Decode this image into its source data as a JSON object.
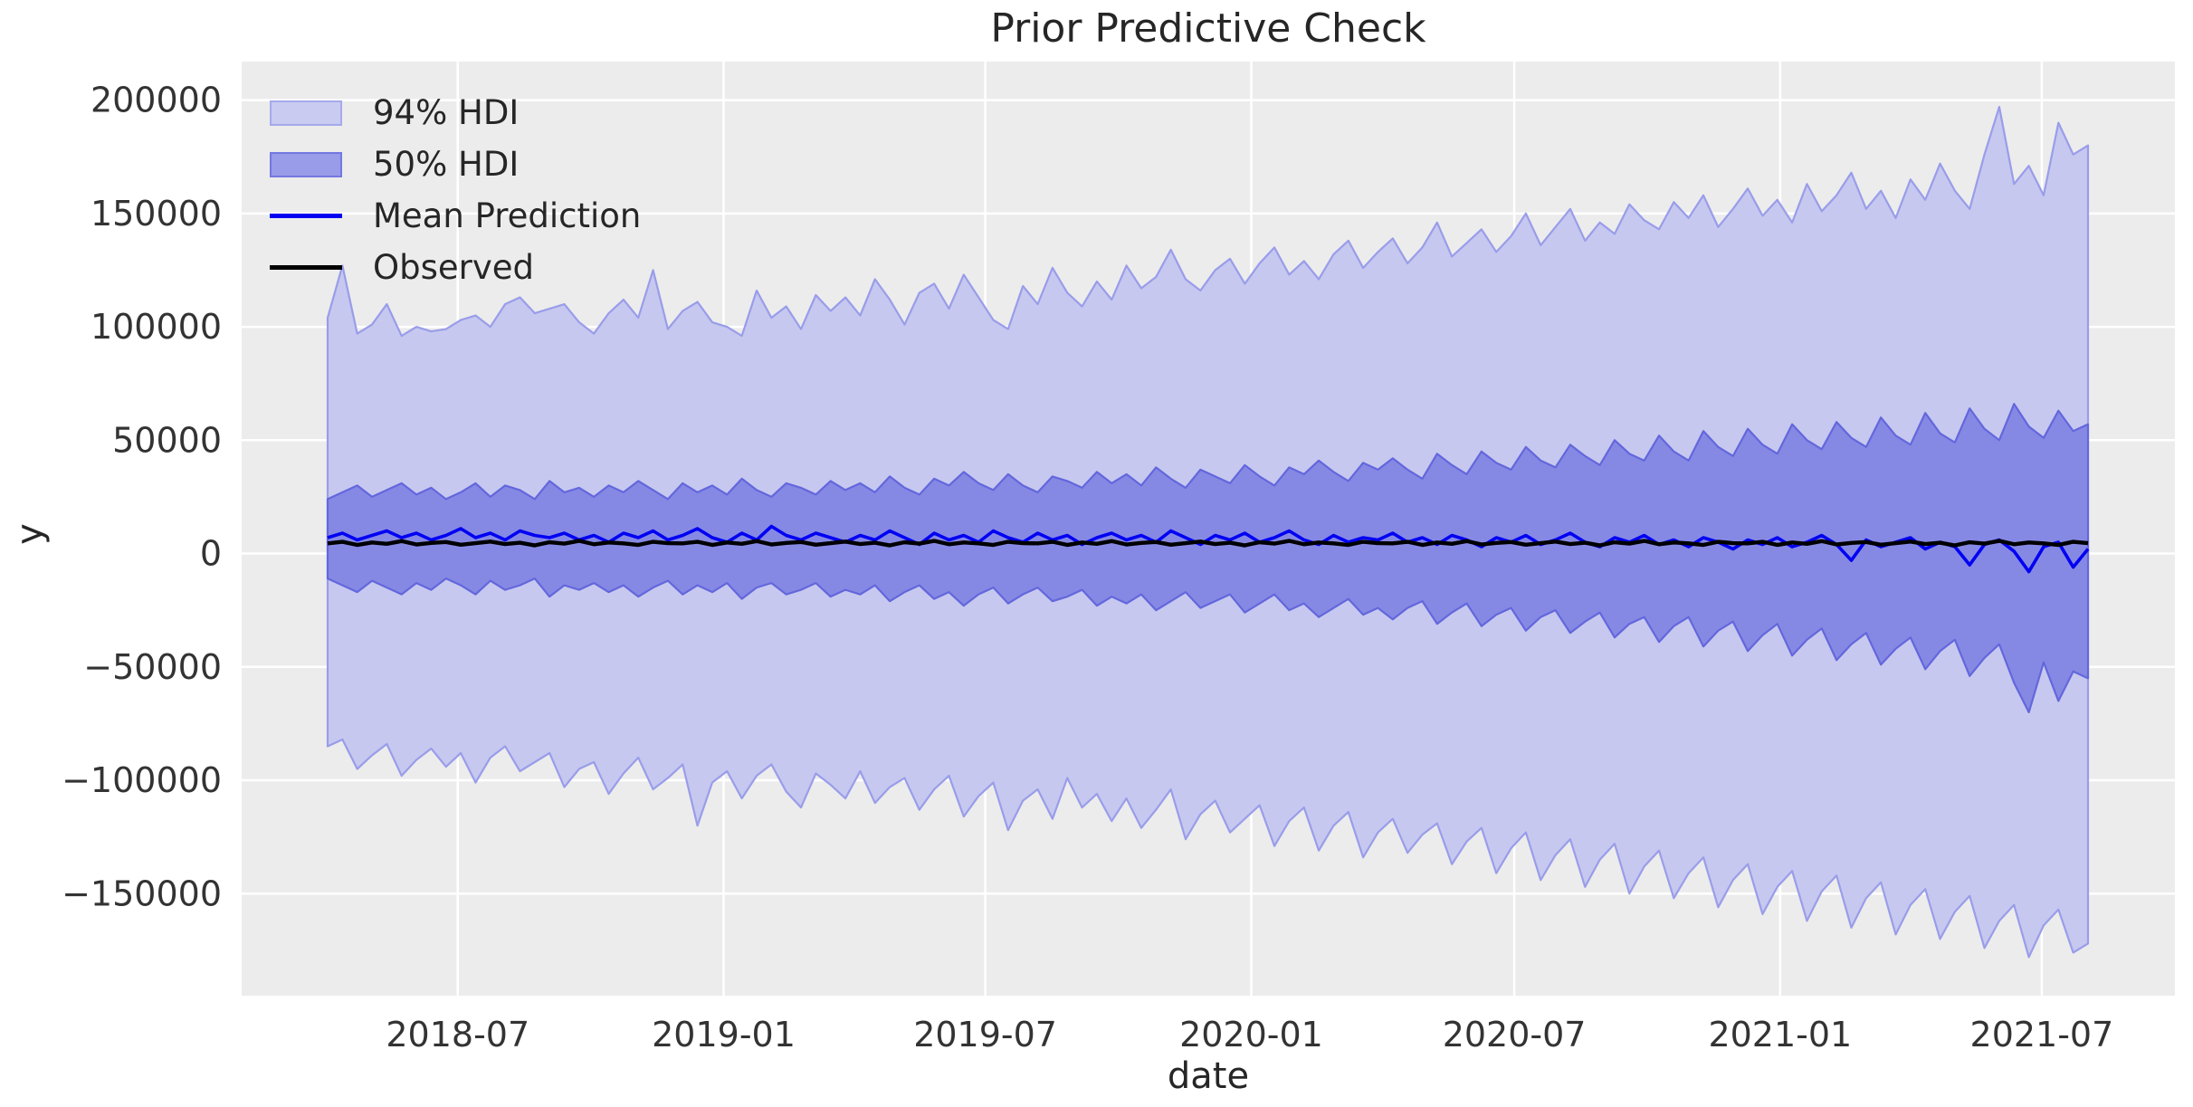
{
  "chart_data": {
    "type": "area",
    "title": "Prior Predictive Check",
    "xlabel": "date",
    "ylabel": "y",
    "grid": true,
    "background_axes": "#ececec",
    "grid_color": "#ffffff",
    "legend_position": "upper left",
    "legend": {
      "items": [
        {
          "label": "94% HDI",
          "swatch": "patch",
          "fill": "#c9cbf0",
          "edge": "#a6aaec"
        },
        {
          "label": "50% HDI",
          "swatch": "patch",
          "fill": "#989ce9",
          "edge": "#7478e0"
        },
        {
          "label": "Mean Prediction",
          "swatch": "line",
          "color": "#0101f2"
        },
        {
          "label": "Observed",
          "swatch": "line",
          "color": "#000000"
        }
      ]
    },
    "x_axis": {
      "label": "date",
      "weeks_total": 174,
      "start": "2018-04",
      "end": "2021-08",
      "ticks": [
        {
          "label": "2018-07",
          "week": 12.86
        },
        {
          "label": "2019-01",
          "week": 39.14
        },
        {
          "label": "2019-07",
          "week": 65.0
        },
        {
          "label": "2020-01",
          "week": 91.29
        },
        {
          "label": "2020-07",
          "week": 117.29
        },
        {
          "label": "2021-01",
          "week": 143.57
        },
        {
          "label": "2021-07",
          "week": 169.43
        }
      ]
    },
    "y_axis": {
      "label": "y",
      "lim": [
        -195000,
        217000
      ],
      "ticks": [
        {
          "label": "200000",
          "value": 200000
        },
        {
          "label": "150000",
          "value": 150000
        },
        {
          "label": "100000",
          "value": 100000
        },
        {
          "label": "50000",
          "value": 50000
        },
        {
          "label": "0",
          "value": 0
        },
        {
          "label": "−50000",
          "value": -50000
        },
        {
          "label": "−100000",
          "value": -100000
        },
        {
          "label": "−150000",
          "value": -150000
        }
      ]
    },
    "series": {
      "hdi94": {
        "name": "94% HDI",
        "fill": "#c6c8ef",
        "edge": "#999de9",
        "upper": [
          104000,
          127000,
          97000,
          101000,
          110000,
          96000,
          100000,
          98000,
          99000,
          103000,
          105000,
          100000,
          110000,
          113000,
          106000,
          108000,
          110000,
          102000,
          97000,
          106000,
          112000,
          104000,
          125000,
          99000,
          107000,
          111000,
          102000,
          100000,
          96000,
          116000,
          104000,
          109000,
          99000,
          114000,
          107000,
          113000,
          105000,
          121000,
          112000,
          101000,
          115000,
          119000,
          108000,
          123000,
          113000,
          103000,
          99000,
          118000,
          110000,
          126000,
          115000,
          109000,
          120000,
          112000,
          127000,
          117000,
          122000,
          134000,
          121000,
          116000,
          125000,
          130000,
          119000,
          128000,
          135000,
          123000,
          129000,
          121000,
          132000,
          138000,
          126000,
          133000,
          139000,
          128000,
          135000,
          146000,
          131000,
          137000,
          143000,
          133000,
          140000,
          150000,
          136000,
          144000,
          152000,
          138000,
          146000,
          141000,
          154000,
          147000,
          143000,
          155000,
          148000,
          158000,
          144000,
          152000,
          161000,
          149000,
          156000,
          146000,
          163000,
          151000,
          158000,
          168000,
          152000,
          160000,
          148000,
          165000,
          156000,
          172000,
          160000,
          152000,
          176000,
          197000,
          163000,
          171000,
          158000,
          190000,
          176000,
          180000
        ],
        "lower": [
          -85000,
          -82000,
          -95000,
          -89000,
          -84000,
          -98000,
          -91000,
          -86000,
          -94000,
          -88000,
          -101000,
          -90000,
          -85000,
          -96000,
          -92000,
          -88000,
          -103000,
          -95000,
          -92000,
          -106000,
          -97000,
          -90000,
          -104000,
          -99000,
          -93000,
          -120000,
          -101000,
          -96000,
          -108000,
          -98000,
          -93000,
          -105000,
          -112000,
          -97000,
          -102000,
          -108000,
          -96000,
          -110000,
          -103000,
          -99000,
          -113000,
          -104000,
          -98000,
          -116000,
          -107000,
          -101000,
          -122000,
          -109000,
          -104000,
          -117000,
          -99000,
          -112000,
          -106000,
          -118000,
          -108000,
          -121000,
          -113000,
          -104000,
          -126000,
          -115000,
          -109000,
          -123000,
          -117000,
          -111000,
          -129000,
          -118000,
          -112000,
          -131000,
          -120000,
          -114000,
          -134000,
          -123000,
          -117000,
          -132000,
          -124000,
          -119000,
          -137000,
          -127000,
          -121000,
          -141000,
          -130000,
          -123000,
          -144000,
          -133000,
          -126000,
          -147000,
          -135000,
          -128000,
          -150000,
          -138000,
          -131000,
          -152000,
          -141000,
          -134000,
          -156000,
          -144000,
          -137000,
          -159000,
          -147000,
          -140000,
          -162000,
          -149000,
          -142000,
          -165000,
          -152000,
          -145000,
          -168000,
          -155000,
          -148000,
          -170000,
          -158000,
          -151000,
          -174000,
          -162000,
          -155000,
          -178000,
          -164000,
          -157000,
          -176000,
          -172000
        ]
      },
      "hdi50": {
        "name": "50% HDI",
        "fill": "#8689e4",
        "edge": "#6367dc",
        "upper": [
          24000,
          27000,
          30000,
          25000,
          28000,
          31000,
          26000,
          29000,
          24000,
          27000,
          31000,
          25000,
          30000,
          28000,
          24000,
          32000,
          27000,
          29000,
          25000,
          30000,
          27000,
          32000,
          28000,
          24000,
          31000,
          27000,
          30000,
          26000,
          33000,
          28000,
          25000,
          31000,
          29000,
          26000,
          32000,
          28000,
          31000,
          27000,
          34000,
          29000,
          26000,
          33000,
          30000,
          36000,
          31000,
          28000,
          35000,
          30000,
          27000,
          34000,
          32000,
          29000,
          36000,
          31000,
          35000,
          30000,
          38000,
          33000,
          29000,
          37000,
          34000,
          31000,
          39000,
          34000,
          30000,
          38000,
          35000,
          41000,
          36000,
          32000,
          40000,
          37000,
          42000,
          37000,
          33000,
          44000,
          39000,
          35000,
          45000,
          40000,
          37000,
          47000,
          41000,
          38000,
          48000,
          43000,
          39000,
          50000,
          44000,
          41000,
          52000,
          45000,
          41000,
          54000,
          47000,
          43000,
          55000,
          48000,
          44000,
          57000,
          50000,
          46000,
          58000,
          51000,
          47000,
          60000,
          52000,
          48000,
          62000,
          53000,
          49000,
          64000,
          55000,
          50000,
          66000,
          56000,
          51000,
          63000,
          54000,
          57000
        ],
        "lower": [
          -11000,
          -14000,
          -17000,
          -12000,
          -15000,
          -18000,
          -13000,
          -16000,
          -11000,
          -14000,
          -18000,
          -12000,
          -16000,
          -14000,
          -11000,
          -19000,
          -14000,
          -16000,
          -13000,
          -17000,
          -14000,
          -19000,
          -15000,
          -12000,
          -18000,
          -14000,
          -17000,
          -13000,
          -20000,
          -15000,
          -13000,
          -18000,
          -16000,
          -13000,
          -19000,
          -16000,
          -18000,
          -14000,
          -21000,
          -17000,
          -14000,
          -20000,
          -17000,
          -23000,
          -18000,
          -15000,
          -22000,
          -18000,
          -15000,
          -21000,
          -19000,
          -16000,
          -23000,
          -19000,
          -22000,
          -18000,
          -25000,
          -21000,
          -17000,
          -24000,
          -21000,
          -18000,
          -26000,
          -22000,
          -18000,
          -25000,
          -22000,
          -28000,
          -24000,
          -20000,
          -27000,
          -24000,
          -29000,
          -24000,
          -21000,
          -31000,
          -26000,
          -22000,
          -32000,
          -27000,
          -24000,
          -34000,
          -28000,
          -25000,
          -35000,
          -30000,
          -26000,
          -37000,
          -31000,
          -28000,
          -39000,
          -32000,
          -28000,
          -41000,
          -34000,
          -30000,
          -43000,
          -36000,
          -31000,
          -45000,
          -38000,
          -33000,
          -47000,
          -40000,
          -35000,
          -49000,
          -42000,
          -37000,
          -51000,
          -43000,
          -38000,
          -54000,
          -46000,
          -40000,
          -57000,
          -70000,
          -48000,
          -65000,
          -52000,
          -55000
        ]
      },
      "mean": {
        "name": "Mean Prediction",
        "color": "#0101f2",
        "values": [
          7000,
          9000,
          6000,
          8000,
          10000,
          7000,
          9000,
          6000,
          8000,
          11000,
          7000,
          9000,
          6000,
          10000,
          8000,
          7000,
          9000,
          6000,
          8000,
          5000,
          9000,
          7000,
          10000,
          6000,
          8000,
          11000,
          7000,
          5000,
          9000,
          6000,
          12000,
          8000,
          6000,
          9000,
          7000,
          5000,
          8000,
          6000,
          10000,
          7000,
          4000,
          9000,
          6000,
          8000,
          5000,
          10000,
          7000,
          5000,
          9000,
          6000,
          8000,
          4000,
          7000,
          9000,
          6000,
          8000,
          5000,
          10000,
          7000,
          4000,
          8000,
          6000,
          9000,
          5000,
          7000,
          10000,
          6000,
          4000,
          8000,
          5000,
          7000,
          6000,
          9000,
          5000,
          7000,
          4000,
          8000,
          6000,
          3000,
          7000,
          5000,
          8000,
          4000,
          6000,
          9000,
          5000,
          3000,
          7000,
          5000,
          8000,
          4000,
          6000,
          3000,
          7000,
          5000,
          2000,
          6000,
          4000,
          7000,
          3000,
          5000,
          8000,
          4000,
          -3000,
          6000,
          3000,
          5000,
          7000,
          2000,
          5000,
          3000,
          -5000,
          4000,
          6000,
          1000,
          -8000,
          3000,
          5000,
          -6000,
          2000
        ]
      },
      "observed": {
        "name": "Observed",
        "color": "#000000",
        "values": [
          4500,
          5200,
          3800,
          4900,
          4300,
          5500,
          4000,
          4700,
          5100,
          3900,
          4600,
          5300,
          4200,
          4800,
          3600,
          5000,
          4400,
          5600,
          4100,
          4900,
          4500,
          3800,
          5200,
          4600,
          4500,
          5200,
          3800,
          4900,
          4300,
          5500,
          4000,
          4700,
          5100,
          3900,
          4600,
          5300,
          4200,
          4800,
          3600,
          5000,
          4400,
          5600,
          4100,
          4900,
          4500,
          3800,
          5200,
          4600,
          4500,
          5200,
          3800,
          4900,
          4300,
          5500,
          4000,
          4700,
          5100,
          3900,
          4600,
          5300,
          4200,
          4800,
          3600,
          5000,
          4400,
          5600,
          4100,
          4900,
          4500,
          3800,
          5200,
          4600,
          4500,
          5200,
          3800,
          4900,
          4300,
          5500,
          4000,
          4700,
          5100,
          3900,
          4600,
          5300,
          4200,
          4800,
          3600,
          5000,
          4400,
          5600,
          4100,
          4900,
          4500,
          3800,
          5200,
          4600,
          4500,
          5200,
          3800,
          4900,
          4300,
          5500,
          4000,
          4700,
          5100,
          3900,
          4600,
          5300,
          4200,
          4800,
          3600,
          5000,
          4400,
          5600,
          4100,
          4900,
          4500,
          3800,
          5200,
          4600
        ]
      }
    }
  }
}
